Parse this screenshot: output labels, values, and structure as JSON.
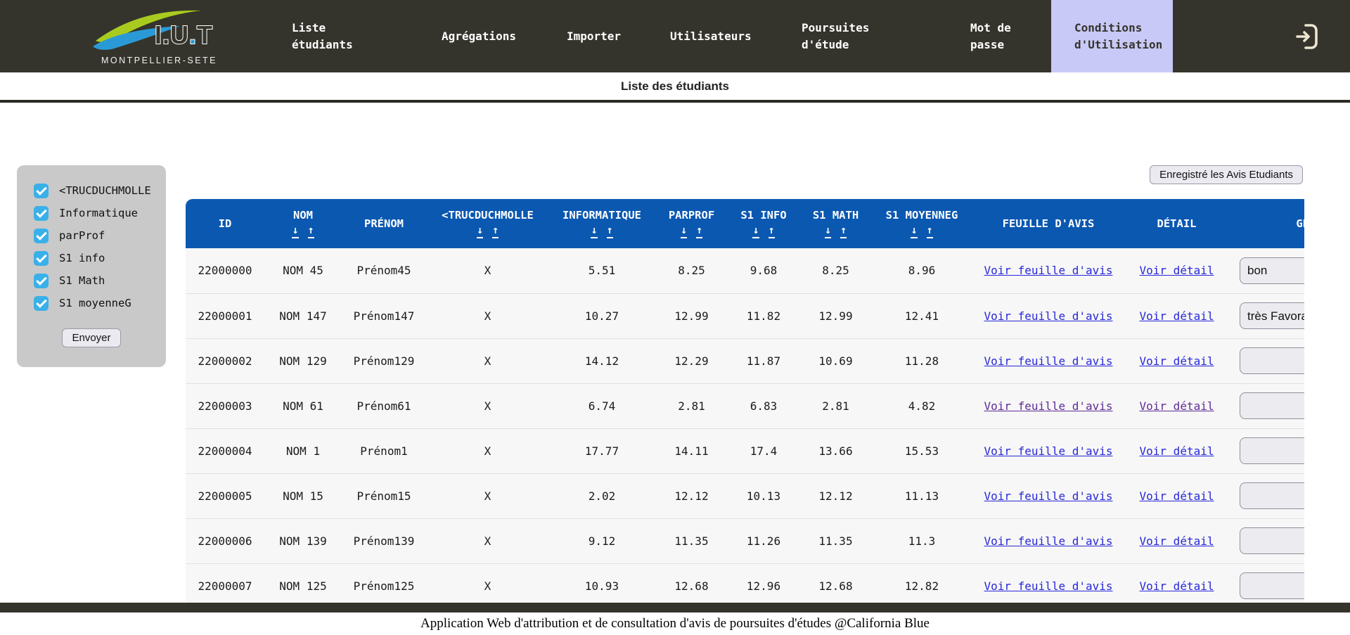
{
  "nav": {
    "logo": {
      "acronym": "I.U.T",
      "subtitle": "MONTPELLIER-SETE"
    },
    "items": [
      {
        "label": "Liste étudiants",
        "active": false
      },
      {
        "label": "Agrégations",
        "active": false
      },
      {
        "label": "Importer",
        "active": false
      },
      {
        "label": "Utilisateurs",
        "active": false
      },
      {
        "label": "Poursuites d'étude",
        "active": false
      },
      {
        "label": "Mot de passe",
        "active": false
      },
      {
        "label": "Conditions d'Utilisation",
        "active": true
      }
    ]
  },
  "page": {
    "subtitle": "Liste des étudiants"
  },
  "filters": {
    "checkboxes": [
      {
        "label": "<TRUCDUCHMOLLE",
        "checked": true
      },
      {
        "label": "Informatique",
        "checked": true
      },
      {
        "label": "parProf",
        "checked": true
      },
      {
        "label": "S1 info",
        "checked": true
      },
      {
        "label": "S1 Math",
        "checked": true
      },
      {
        "label": "S1 moyenneG",
        "checked": true
      }
    ],
    "submit_label": "Envoyer"
  },
  "toolbar": {
    "save_button": "Enregistré les Avis Etudiants"
  },
  "table": {
    "columns": [
      {
        "label": "ID",
        "sortable": false
      },
      {
        "label": "NOM",
        "sortable": true
      },
      {
        "label": "PRÉNOM",
        "sortable": false
      },
      {
        "label": "<TRUCDUCHMOLLE",
        "sortable": true
      },
      {
        "label": "INFORMATIQUE",
        "sortable": true
      },
      {
        "label": "PARPROF",
        "sortable": true
      },
      {
        "label": "S1 INFO",
        "sortable": true
      },
      {
        "label": "S1 MATH",
        "sortable": true
      },
      {
        "label": "S1 MOYENNEG",
        "sortable": true
      },
      {
        "label": "FEUILLE D'AVIS",
        "sortable": false
      },
      {
        "label": "DÉTAIL",
        "sortable": false
      },
      {
        "label": "GESTION",
        "sortable": false
      }
    ],
    "links": {
      "feuille": "Voir feuille d'avis",
      "detail": "Voir détail"
    },
    "rows": [
      {
        "id": "22000000",
        "nom": "NOM 45",
        "prenom": "Prénom45",
        "truc": "X",
        "informatique": "5.51",
        "parprof": "8.25",
        "s1info": "9.68",
        "s1math": "8.25",
        "s1moyenne": "8.96",
        "avis": "bon",
        "visited": false
      },
      {
        "id": "22000001",
        "nom": "NOM 147",
        "prenom": "Prénom147",
        "truc": "X",
        "informatique": "10.27",
        "parprof": "12.99",
        "s1info": "11.82",
        "s1math": "12.99",
        "s1moyenne": "12.41",
        "avis": "très Favorable",
        "visited": false
      },
      {
        "id": "22000002",
        "nom": "NOM 129",
        "prenom": "Prénom129",
        "truc": "X",
        "informatique": "14.12",
        "parprof": "12.29",
        "s1info": "11.87",
        "s1math": "10.69",
        "s1moyenne": "11.28",
        "avis": "",
        "visited": false
      },
      {
        "id": "22000003",
        "nom": "NOM 61",
        "prenom": "Prénom61",
        "truc": "X",
        "informatique": "6.74",
        "parprof": "2.81",
        "s1info": "6.83",
        "s1math": "2.81",
        "s1moyenne": "4.82",
        "avis": "",
        "visited": true
      },
      {
        "id": "22000004",
        "nom": "NOM 1",
        "prenom": "Prénom1",
        "truc": "X",
        "informatique": "17.77",
        "parprof": "14.11",
        "s1info": "17.4",
        "s1math": "13.66",
        "s1moyenne": "15.53",
        "avis": "",
        "visited": false
      },
      {
        "id": "22000005",
        "nom": "NOM 15",
        "prenom": "Prénom15",
        "truc": "X",
        "informatique": "2.02",
        "parprof": "12.12",
        "s1info": "10.13",
        "s1math": "12.12",
        "s1moyenne": "11.13",
        "avis": "",
        "visited": false
      },
      {
        "id": "22000006",
        "nom": "NOM 139",
        "prenom": "Prénom139",
        "truc": "X",
        "informatique": "9.12",
        "parprof": "11.35",
        "s1info": "11.26",
        "s1math": "11.35",
        "s1moyenne": "11.3",
        "avis": "",
        "visited": false
      },
      {
        "id": "22000007",
        "nom": "NOM 125",
        "prenom": "Prénom125",
        "truc": "X",
        "informatique": "10.93",
        "parprof": "12.68",
        "s1info": "12.96",
        "s1math": "12.68",
        "s1moyenne": "12.82",
        "avis": "",
        "visited": false
      }
    ]
  },
  "icons": {
    "sort_desc": "↓",
    "sort_asc": "↑"
  },
  "footer": {
    "text": "Application Web d'attribution et de consultation d'avis de poursuites d'études @California Blue"
  },
  "colors": {
    "nav_bg": "#35342c",
    "active_tab": "#c9c9f7",
    "table_header": "#0b58b1",
    "checkbox": "#3ab0e9",
    "panel": "#c9c9c9",
    "link": "#2727d8",
    "link_visited": "#5e2b97",
    "row_bg": "#f7f7f7"
  }
}
